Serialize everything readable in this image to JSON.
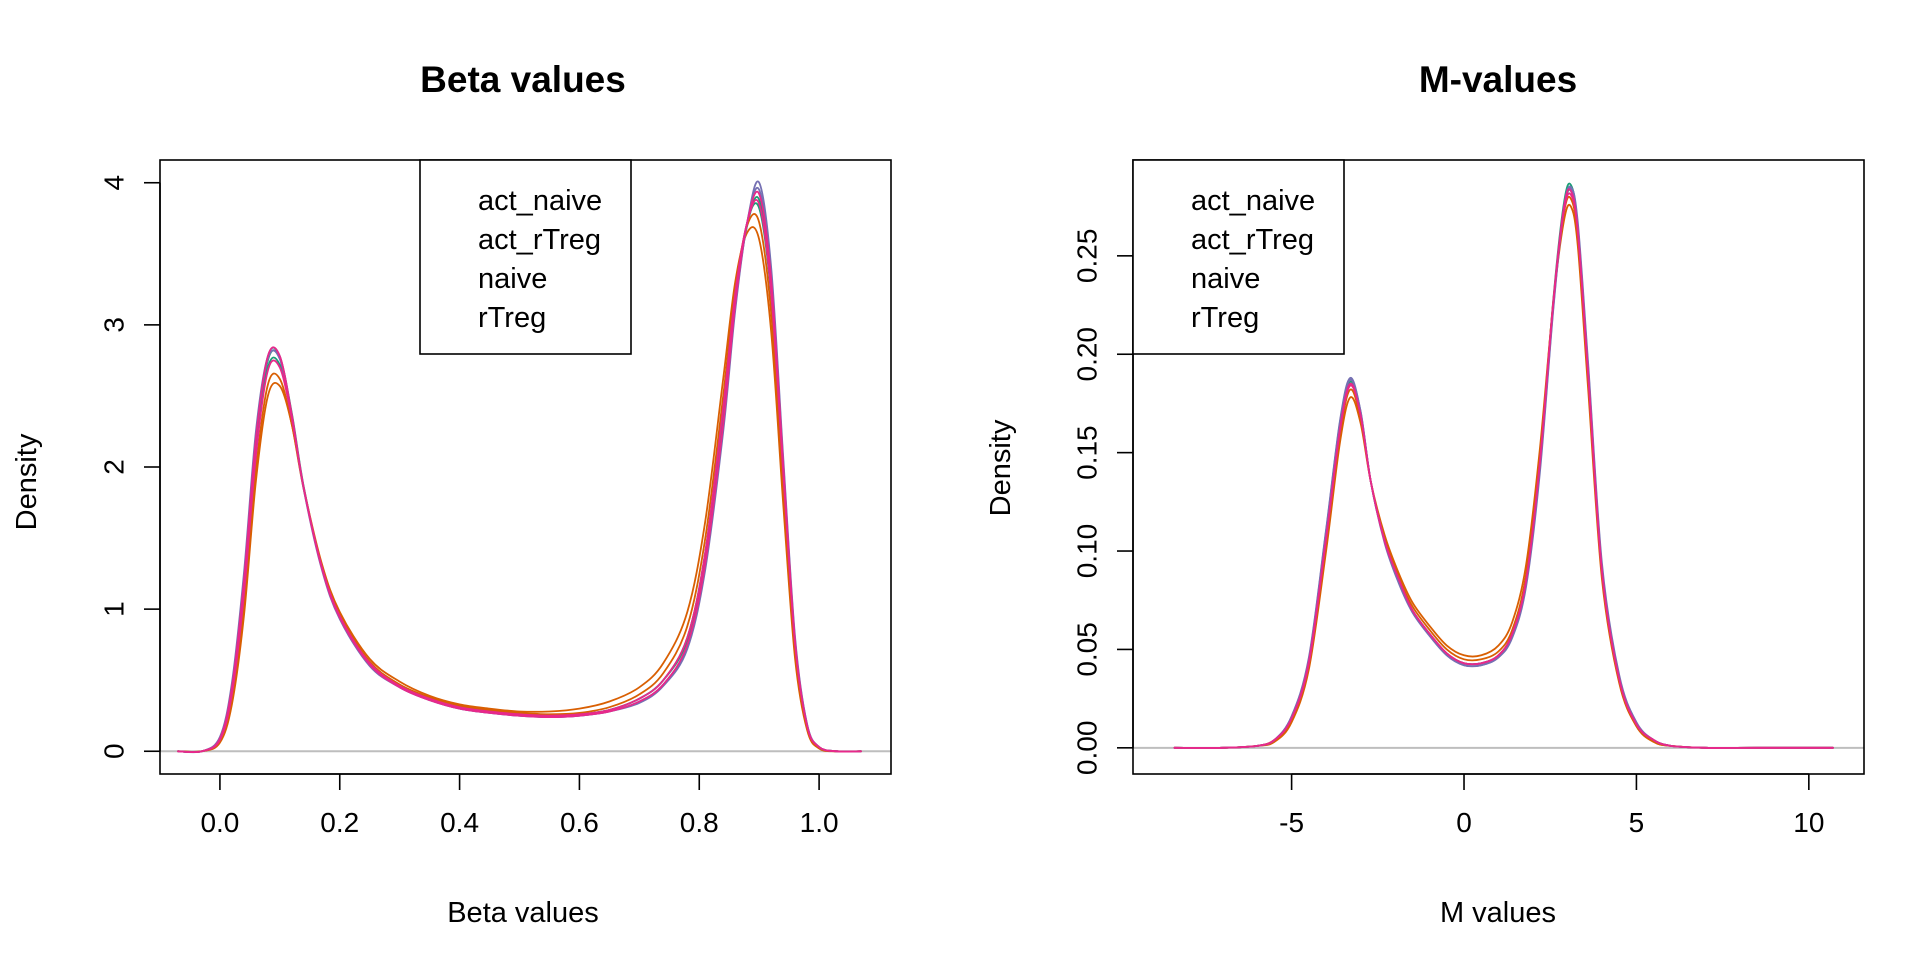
{
  "chart_data": [
    {
      "type": "line",
      "title": "Beta values",
      "xlabel": "Beta values",
      "ylabel": "Density",
      "xlim": [
        -0.1,
        1.12
      ],
      "ylim": [
        -0.16,
        4.16
      ],
      "x_ticks": [
        0.0,
        0.2,
        0.4,
        0.6,
        0.8,
        1.0
      ],
      "x_tick_labels": [
        "0.0",
        "0.2",
        "0.4",
        "0.6",
        "0.8",
        "1.0"
      ],
      "y_ticks": [
        0,
        1,
        2,
        3,
        4
      ],
      "y_tick_labels": [
        "0",
        "1",
        "2",
        "3",
        "4"
      ],
      "y_tick_label_rotation": "vertical",
      "grid": false,
      "baseline": 0,
      "legend_placement": "top-center",
      "legend": [
        {
          "label": "act_naive",
          "color": "#1B9E77"
        },
        {
          "label": "act_rTreg",
          "color": "#D95F02"
        },
        {
          "label": "naive",
          "color": "#7570B3"
        },
        {
          "label": "rTreg",
          "color": "#E7298A"
        }
      ],
      "x": [
        -0.07,
        -0.03,
        0.0,
        0.02,
        0.04,
        0.06,
        0.08,
        0.1,
        0.12,
        0.14,
        0.17,
        0.2,
        0.25,
        0.3,
        0.35,
        0.4,
        0.45,
        0.5,
        0.55,
        0.6,
        0.65,
        0.7,
        0.74,
        0.78,
        0.81,
        0.84,
        0.86,
        0.88,
        0.9,
        0.92,
        0.94,
        0.96,
        0.98,
        1.0,
        1.03,
        1.07
      ],
      "series": [
        {
          "color": "#1B9E77",
          "values": [
            0.0,
            0.0,
            0.08,
            0.4,
            1.1,
            2.1,
            2.7,
            2.72,
            2.35,
            1.85,
            1.3,
            0.95,
            0.62,
            0.46,
            0.37,
            0.31,
            0.28,
            0.26,
            0.25,
            0.26,
            0.29,
            0.37,
            0.5,
            0.8,
            1.4,
            2.4,
            3.2,
            3.72,
            3.82,
            3.2,
            1.95,
            0.75,
            0.18,
            0.03,
            0.0,
            0.0
          ]
        },
        {
          "color": "#1B9E77",
          "values": [
            0.0,
            0.0,
            0.08,
            0.42,
            1.15,
            2.15,
            2.75,
            2.77,
            2.38,
            1.86,
            1.3,
            0.95,
            0.62,
            0.46,
            0.37,
            0.31,
            0.28,
            0.26,
            0.25,
            0.26,
            0.29,
            0.37,
            0.5,
            0.78,
            1.36,
            2.35,
            3.15,
            3.7,
            3.88,
            3.28,
            2.0,
            0.76,
            0.18,
            0.03,
            0.0,
            0.0
          ]
        },
        {
          "color": "#D95F02",
          "values": [
            0.0,
            0.0,
            0.06,
            0.33,
            0.95,
            1.9,
            2.5,
            2.57,
            2.3,
            1.85,
            1.32,
            0.98,
            0.65,
            0.49,
            0.39,
            0.33,
            0.3,
            0.28,
            0.28,
            0.3,
            0.35,
            0.45,
            0.62,
            0.98,
            1.62,
            2.62,
            3.3,
            3.65,
            3.6,
            2.95,
            1.75,
            0.65,
            0.15,
            0.02,
            0.0,
            0.0
          ]
        },
        {
          "color": "#D95F02",
          "values": [
            0.0,
            0.0,
            0.07,
            0.37,
            1.02,
            1.98,
            2.58,
            2.62,
            2.3,
            1.84,
            1.3,
            0.96,
            0.63,
            0.47,
            0.38,
            0.32,
            0.29,
            0.27,
            0.26,
            0.27,
            0.31,
            0.4,
            0.55,
            0.88,
            1.5,
            2.5,
            3.25,
            3.7,
            3.72,
            3.08,
            1.85,
            0.7,
            0.16,
            0.02,
            0.0,
            0.0
          ]
        },
        {
          "color": "#7570B3",
          "values": [
            0.0,
            0.0,
            0.1,
            0.48,
            1.25,
            2.25,
            2.78,
            2.78,
            2.36,
            1.84,
            1.28,
            0.93,
            0.6,
            0.45,
            0.36,
            0.3,
            0.27,
            0.25,
            0.24,
            0.25,
            0.28,
            0.34,
            0.46,
            0.72,
            1.28,
            2.25,
            3.1,
            3.72,
            4.0,
            3.4,
            2.08,
            0.8,
            0.19,
            0.03,
            0.0,
            0.0
          ]
        },
        {
          "color": "#7570B3",
          "values": [
            0.0,
            0.0,
            0.09,
            0.45,
            1.2,
            2.2,
            2.76,
            2.76,
            2.36,
            1.85,
            1.29,
            0.94,
            0.61,
            0.45,
            0.36,
            0.3,
            0.27,
            0.25,
            0.24,
            0.25,
            0.28,
            0.35,
            0.47,
            0.74,
            1.3,
            2.28,
            3.12,
            3.72,
            3.95,
            3.35,
            2.05,
            0.78,
            0.19,
            0.03,
            0.0,
            0.0
          ]
        },
        {
          "color": "#E7298A",
          "values": [
            0.0,
            0.0,
            0.09,
            0.45,
            1.2,
            2.2,
            2.78,
            2.78,
            2.37,
            1.85,
            1.29,
            0.94,
            0.61,
            0.45,
            0.36,
            0.3,
            0.27,
            0.25,
            0.24,
            0.25,
            0.28,
            0.35,
            0.47,
            0.75,
            1.32,
            2.3,
            3.14,
            3.72,
            3.92,
            3.32,
            2.03,
            0.77,
            0.18,
            0.03,
            0.0,
            0.0
          ]
        },
        {
          "color": "#E7298A",
          "values": [
            0.0,
            0.0,
            0.08,
            0.4,
            1.1,
            2.08,
            2.68,
            2.7,
            2.34,
            1.85,
            1.3,
            0.95,
            0.62,
            0.46,
            0.37,
            0.31,
            0.28,
            0.26,
            0.25,
            0.26,
            0.29,
            0.37,
            0.5,
            0.8,
            1.4,
            2.42,
            3.22,
            3.72,
            3.85,
            3.22,
            1.97,
            0.75,
            0.18,
            0.03,
            0.0,
            0.0
          ]
        }
      ]
    },
    {
      "type": "line",
      "title": "M-values",
      "xlabel": "M values",
      "ylabel": "Density",
      "xlim": [
        -9.6,
        11.6
      ],
      "ylim": [
        -0.0133,
        0.2987
      ],
      "x_ticks": [
        -5,
        0,
        5,
        10
      ],
      "x_tick_labels": [
        "-5",
        "0",
        "5",
        "10"
      ],
      "y_ticks": [
        0.0,
        0.05,
        0.1,
        0.15,
        0.2,
        0.25
      ],
      "y_tick_labels": [
        "0.00",
        "0.05",
        "0.10",
        "0.15",
        "0.20",
        "0.25"
      ],
      "y_tick_label_rotation": "vertical",
      "grid": false,
      "baseline": 0,
      "legend_placement": "top-left",
      "legend": [
        {
          "label": "act_naive",
          "color": "#1B9E77"
        },
        {
          "label": "act_rTreg",
          "color": "#D95F02"
        },
        {
          "label": "naive",
          "color": "#7570B3"
        },
        {
          "label": "rTreg",
          "color": "#E7298A"
        }
      ],
      "x": [
        -8.4,
        -7.0,
        -6.0,
        -5.5,
        -5.0,
        -4.5,
        -4.0,
        -3.6,
        -3.3,
        -3.0,
        -2.7,
        -2.3,
        -1.9,
        -1.5,
        -1.0,
        -0.5,
        0.0,
        0.5,
        1.0,
        1.4,
        1.8,
        2.2,
        2.6,
        2.9,
        3.1,
        3.3,
        3.6,
        4.0,
        4.5,
        5.0,
        5.5,
        6.0,
        7.0,
        8.5,
        10.7
      ],
      "series": [
        {
          "color": "#1B9E77",
          "values": [
            0.0,
            0.0,
            0.001,
            0.004,
            0.015,
            0.045,
            0.11,
            0.165,
            0.187,
            0.17,
            0.135,
            0.105,
            0.085,
            0.07,
            0.058,
            0.048,
            0.043,
            0.043,
            0.047,
            0.058,
            0.085,
            0.145,
            0.23,
            0.277,
            0.286,
            0.265,
            0.19,
            0.09,
            0.035,
            0.012,
            0.004,
            0.001,
            0.0,
            0.0,
            0.0
          ]
        },
        {
          "color": "#1B9E77",
          "values": [
            0.0,
            0.0,
            0.001,
            0.004,
            0.015,
            0.044,
            0.108,
            0.163,
            0.186,
            0.17,
            0.135,
            0.105,
            0.086,
            0.07,
            0.058,
            0.048,
            0.043,
            0.043,
            0.047,
            0.058,
            0.085,
            0.145,
            0.228,
            0.274,
            0.283,
            0.263,
            0.19,
            0.09,
            0.035,
            0.012,
            0.004,
            0.001,
            0.0,
            0.0,
            0.0
          ]
        },
        {
          "color": "#D95F02",
          "values": [
            0.0,
            0.0,
            0.001,
            0.003,
            0.013,
            0.04,
            0.1,
            0.155,
            0.178,
            0.165,
            0.135,
            0.108,
            0.089,
            0.074,
            0.062,
            0.052,
            0.047,
            0.047,
            0.052,
            0.064,
            0.093,
            0.152,
            0.228,
            0.268,
            0.275,
            0.255,
            0.182,
            0.086,
            0.033,
            0.011,
            0.003,
            0.001,
            0.0,
            0.0,
            0.0
          ]
        },
        {
          "color": "#D95F02",
          "values": [
            0.0,
            0.0,
            0.001,
            0.004,
            0.014,
            0.042,
            0.104,
            0.159,
            0.182,
            0.167,
            0.135,
            0.106,
            0.087,
            0.072,
            0.06,
            0.05,
            0.045,
            0.045,
            0.049,
            0.06,
            0.088,
            0.148,
            0.229,
            0.272,
            0.279,
            0.259,
            0.186,
            0.088,
            0.034,
            0.011,
            0.003,
            0.001,
            0.0,
            0.0,
            0.0
          ]
        },
        {
          "color": "#7570B3",
          "values": [
            0.0,
            0.0,
            0.001,
            0.004,
            0.016,
            0.046,
            0.111,
            0.166,
            0.188,
            0.171,
            0.135,
            0.104,
            0.084,
            0.069,
            0.057,
            0.047,
            0.042,
            0.042,
            0.046,
            0.056,
            0.082,
            0.14,
            0.225,
            0.274,
            0.285,
            0.267,
            0.195,
            0.094,
            0.037,
            0.013,
            0.004,
            0.001,
            0.0,
            0.0,
            0.0
          ]
        },
        {
          "color": "#7570B3",
          "values": [
            0.0,
            0.0,
            0.001,
            0.004,
            0.016,
            0.045,
            0.11,
            0.165,
            0.187,
            0.171,
            0.135,
            0.105,
            0.085,
            0.069,
            0.057,
            0.047,
            0.042,
            0.042,
            0.046,
            0.057,
            0.083,
            0.142,
            0.226,
            0.275,
            0.284,
            0.265,
            0.193,
            0.092,
            0.036,
            0.012,
            0.004,
            0.001,
            0.0,
            0.0,
            0.0
          ]
        },
        {
          "color": "#E7298A",
          "values": [
            0.0,
            0.0,
            0.001,
            0.004,
            0.015,
            0.043,
            0.106,
            0.161,
            0.184,
            0.169,
            0.135,
            0.105,
            0.086,
            0.07,
            0.058,
            0.048,
            0.043,
            0.043,
            0.047,
            0.058,
            0.085,
            0.145,
            0.228,
            0.273,
            0.281,
            0.262,
            0.189,
            0.09,
            0.035,
            0.012,
            0.004,
            0.001,
            0.0,
            0.0,
            0.0
          ]
        },
        {
          "color": "#E7298A",
          "values": [
            0.0,
            0.0,
            0.001,
            0.004,
            0.015,
            0.044,
            0.107,
            0.162,
            0.185,
            0.169,
            0.135,
            0.105,
            0.086,
            0.07,
            0.058,
            0.048,
            0.043,
            0.043,
            0.047,
            0.058,
            0.085,
            0.145,
            0.229,
            0.275,
            0.283,
            0.263,
            0.19,
            0.09,
            0.035,
            0.012,
            0.004,
            0.001,
            0.0,
            0.0,
            0.0
          ]
        }
      ]
    }
  ]
}
